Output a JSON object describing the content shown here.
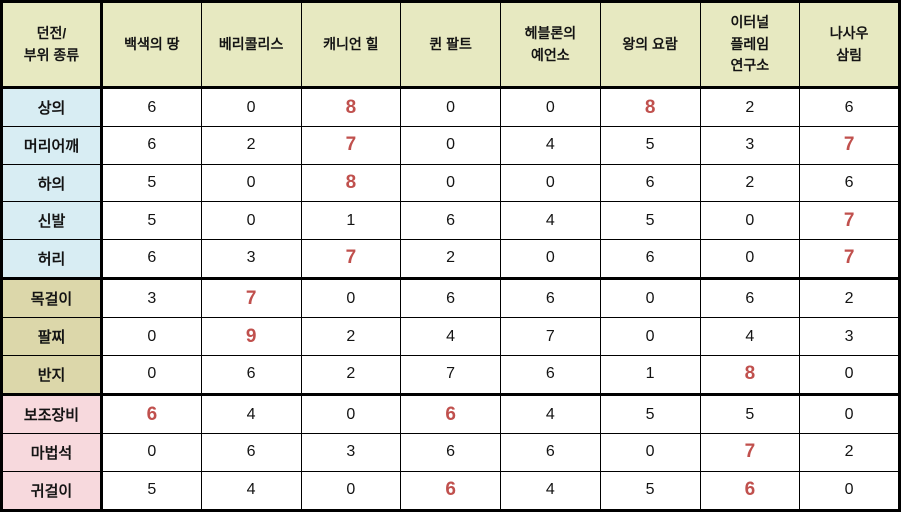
{
  "colors": {
    "header-bg": "#e7e9c1",
    "armor-bg": "#d8edf3",
    "accessory-bg": "#dcd7aa",
    "special-bg": "#f7d9dd",
    "highlight": "#c0504d",
    "ink": "#141414",
    "border": "#000000"
  },
  "chart_data": {
    "type": "table",
    "corner_header_lines": [
      "던전/",
      "부위 종류"
    ],
    "columns": [
      "백색의 땅",
      "베리콜리스",
      "캐니언 힐",
      "퀸 팔트",
      "헤블론의 예언소",
      "왕의 요람",
      "이터널 플레임 연구소",
      "나사우 삼림"
    ],
    "column_header_lines": [
      [
        "백색의 땅"
      ],
      [
        "베리콜리스"
      ],
      [
        "캐니언 힐"
      ],
      [
        "퀸 팔트"
      ],
      [
        "헤블론의",
        "예언소"
      ],
      [
        "왕의 요람"
      ],
      [
        "이터널",
        "플레임",
        "연구소"
      ],
      [
        "나사우",
        "삼림"
      ]
    ],
    "row_groups": [
      {
        "name": "armor",
        "rows": [
          {
            "label": "상의",
            "values": [
              6,
              0,
              8,
              0,
              0,
              8,
              2,
              6
            ],
            "highlighted": [
              2,
              5
            ]
          },
          {
            "label": "머리어깨",
            "values": [
              6,
              2,
              7,
              0,
              4,
              5,
              3,
              7
            ],
            "highlighted": [
              2,
              7
            ]
          },
          {
            "label": "하의",
            "values": [
              5,
              0,
              8,
              0,
              0,
              6,
              2,
              6
            ],
            "highlighted": [
              2
            ]
          },
          {
            "label": "신발",
            "values": [
              5,
              0,
              1,
              6,
              4,
              5,
              0,
              7
            ],
            "highlighted": [
              7
            ]
          },
          {
            "label": "허리",
            "values": [
              6,
              3,
              7,
              2,
              0,
              6,
              0,
              7
            ],
            "highlighted": [
              2,
              7
            ]
          }
        ]
      },
      {
        "name": "accessory",
        "rows": [
          {
            "label": "목걸이",
            "values": [
              3,
              7,
              0,
              6,
              6,
              0,
              6,
              2
            ],
            "highlighted": [
              1
            ]
          },
          {
            "label": "팔찌",
            "values": [
              0,
              9,
              2,
              4,
              7,
              0,
              4,
              3
            ],
            "highlighted": [
              1
            ]
          },
          {
            "label": "반지",
            "values": [
              0,
              6,
              2,
              7,
              6,
              1,
              8,
              0
            ],
            "highlighted": [
              6
            ]
          }
        ]
      },
      {
        "name": "special",
        "rows": [
          {
            "label": "보조장비",
            "values": [
              6,
              4,
              0,
              6,
              4,
              5,
              5,
              0
            ],
            "highlighted": [
              0,
              3
            ]
          },
          {
            "label": "마법석",
            "values": [
              0,
              6,
              3,
              6,
              6,
              0,
              7,
              2
            ],
            "highlighted": [
              6
            ]
          },
          {
            "label": "귀걸이",
            "values": [
              5,
              4,
              0,
              6,
              4,
              5,
              6,
              0
            ],
            "highlighted": [
              3,
              6
            ]
          }
        ]
      }
    ]
  }
}
